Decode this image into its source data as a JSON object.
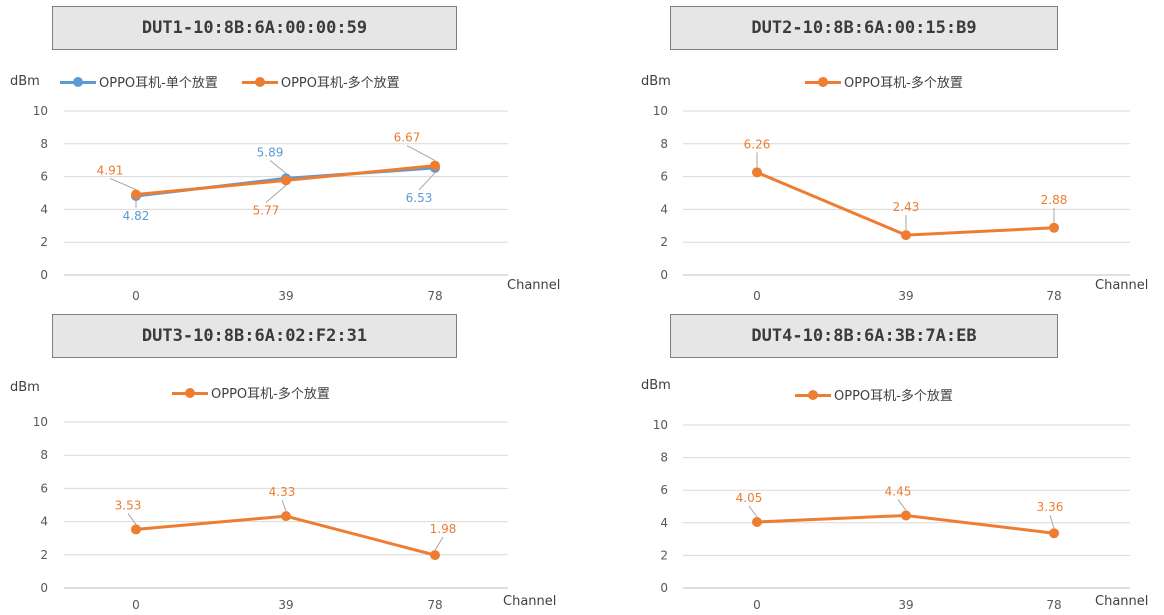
{
  "axis_label_y": "dBm",
  "axis_label_x": "Channel",
  "colors": {
    "single": "#5b9bd5",
    "multi": "#ed7d31",
    "grid": "#d9d9d9",
    "axis": "#bfbfbf",
    "text": "#595959"
  },
  "chart_data": [
    {
      "type": "line",
      "title": "DUT1-10:8B:6A:00:00:59",
      "ylabel": "dBm",
      "xlabel": "Channel",
      "categories": [
        "0",
        "39",
        "78"
      ],
      "ylim": [
        0,
        10
      ],
      "yticks": [
        "0",
        "2",
        "4",
        "6",
        "8",
        "10"
      ],
      "grid": true,
      "series": [
        {
          "name": "OPPO耳机-单个放置",
          "color": "#5b9bd5",
          "values": [
            4.82,
            5.89,
            6.53
          ],
          "labels": [
            "4.82",
            "5.89",
            "6.53"
          ]
        },
        {
          "name": "OPPO耳机-多个放置",
          "color": "#ed7d31",
          "values": [
            4.91,
            5.77,
            6.67
          ],
          "labels": [
            "4.91",
            "5.77",
            "6.67"
          ]
        }
      ]
    },
    {
      "type": "line",
      "title": "DUT2-10:8B:6A:00:15:B9",
      "ylabel": "dBm",
      "xlabel": "Channel",
      "categories": [
        "0",
        "39",
        "78"
      ],
      "ylim": [
        0,
        10
      ],
      "yticks": [
        "0",
        "2",
        "4",
        "6",
        "8",
        "10"
      ],
      "grid": true,
      "series": [
        {
          "name": "OPPO耳机-多个放置",
          "color": "#ed7d31",
          "values": [
            6.26,
            2.43,
            2.88
          ],
          "labels": [
            "6.26",
            "2.43",
            "2.88"
          ]
        }
      ]
    },
    {
      "type": "line",
      "title": "DUT3-10:8B:6A:02:F2:31",
      "ylabel": "dBm",
      "xlabel": "Channel",
      "categories": [
        "0",
        "39",
        "78"
      ],
      "ylim": [
        0,
        10
      ],
      "yticks": [
        "0",
        "2",
        "4",
        "6",
        "8",
        "10"
      ],
      "grid": true,
      "series": [
        {
          "name": "OPPO耳机-多个放置",
          "color": "#ed7d31",
          "values": [
            3.53,
            4.33,
            1.98
          ],
          "labels": [
            "3.53",
            "4.33",
            "1.98"
          ]
        }
      ]
    },
    {
      "type": "line",
      "title": "DUT4-10:8B:6A:3B:7A:EB",
      "ylabel": "dBm",
      "xlabel": "Channel",
      "categories": [
        "0",
        "39",
        "78"
      ],
      "ylim": [
        0,
        10
      ],
      "yticks": [
        "0",
        "2",
        "4",
        "6",
        "8",
        "10"
      ],
      "grid": true,
      "series": [
        {
          "name": "OPPO耳机-多个放置",
          "color": "#ed7d31",
          "values": [
            4.05,
            4.45,
            3.36
          ],
          "labels": [
            "4.05",
            "4.45",
            "3.36"
          ]
        }
      ]
    }
  ]
}
